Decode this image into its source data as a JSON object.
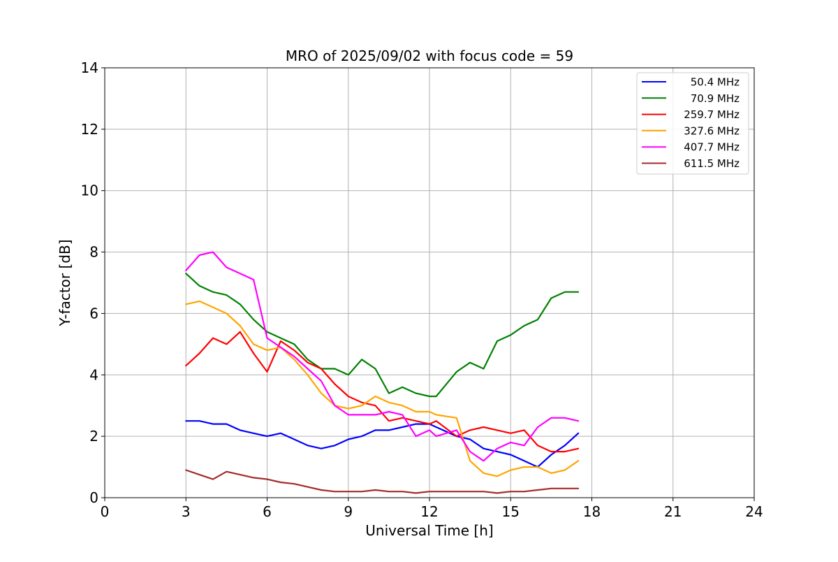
{
  "chart_data": {
    "type": "line",
    "title": "MRO of 2025/09/02 with focus code = 59",
    "xlabel": "Universal Time [h]",
    "ylabel": "Y-factor [dB]",
    "xlim": [
      0,
      24
    ],
    "ylim": [
      0,
      14
    ],
    "xticks": [
      0,
      3,
      6,
      9,
      12,
      15,
      18,
      21,
      24
    ],
    "yticks": [
      0,
      2,
      4,
      6,
      8,
      10,
      12,
      14
    ],
    "grid": true,
    "legend_position": "top-right",
    "series": [
      {
        "name": "50.4 MHz",
        "color": "#0000ff",
        "x": [
          3.0,
          3.5,
          4.0,
          4.5,
          5.0,
          5.5,
          6.0,
          6.5,
          7.0,
          7.5,
          8.0,
          8.5,
          9.0,
          9.5,
          10.0,
          10.5,
          11.0,
          11.5,
          12.0,
          12.25,
          13.0,
          13.5,
          14.0,
          14.5,
          15.0,
          15.5,
          16.0,
          16.5,
          17.0,
          17.5
        ],
        "y": [
          2.5,
          2.5,
          2.4,
          2.4,
          2.2,
          2.1,
          2.0,
          2.1,
          1.9,
          1.7,
          1.6,
          1.7,
          1.9,
          2.0,
          2.2,
          2.2,
          2.3,
          2.4,
          2.4,
          2.3,
          2.0,
          1.9,
          1.6,
          1.5,
          1.4,
          1.2,
          1.0,
          1.4,
          1.7,
          2.1
        ]
      },
      {
        "name": "70.9 MHz",
        "color": "#008000",
        "x": [
          3.0,
          3.5,
          4.0,
          4.5,
          5.0,
          5.5,
          6.0,
          6.5,
          7.0,
          7.5,
          8.0,
          8.5,
          9.0,
          9.5,
          10.0,
          10.5,
          11.0,
          11.5,
          12.0,
          12.25,
          13.0,
          13.5,
          14.0,
          14.5,
          15.0,
          15.5,
          16.0,
          16.5,
          17.0,
          17.5
        ],
        "y": [
          7.3,
          6.9,
          6.7,
          6.6,
          6.3,
          5.8,
          5.4,
          5.2,
          5.0,
          4.5,
          4.2,
          4.2,
          4.0,
          4.5,
          4.2,
          3.4,
          3.6,
          3.4,
          3.3,
          3.3,
          4.1,
          4.4,
          4.2,
          5.1,
          5.3,
          5.6,
          5.8,
          6.5,
          6.7,
          6.7
        ]
      },
      {
        "name": "259.7 MHz",
        "color": "#ff0000",
        "x": [
          3.0,
          3.5,
          4.0,
          4.5,
          5.0,
          5.5,
          6.0,
          6.5,
          7.0,
          7.5,
          8.0,
          8.5,
          9.0,
          9.5,
          10.0,
          10.5,
          11.0,
          11.5,
          12.0,
          12.25,
          13.0,
          13.5,
          14.0,
          14.5,
          15.0,
          15.5,
          16.0,
          16.5,
          17.0,
          17.5
        ],
        "y": [
          4.3,
          4.7,
          5.2,
          5.0,
          5.4,
          4.7,
          4.1,
          5.1,
          4.8,
          4.4,
          4.2,
          3.7,
          3.3,
          3.1,
          3.0,
          2.5,
          2.6,
          2.5,
          2.4,
          2.5,
          2.0,
          2.2,
          2.3,
          2.2,
          2.1,
          2.2,
          1.7,
          1.5,
          1.5,
          1.6
        ]
      },
      {
        "name": "327.6 MHz",
        "color": "#ffa500",
        "x": [
          3.0,
          3.5,
          4.0,
          4.5,
          5.0,
          5.5,
          6.0,
          6.5,
          7.0,
          7.5,
          8.0,
          8.5,
          9.0,
          9.5,
          10.0,
          10.5,
          11.0,
          11.5,
          12.0,
          12.25,
          13.0,
          13.5,
          14.0,
          14.5,
          15.0,
          15.5,
          16.0,
          16.5,
          17.0,
          17.5
        ],
        "y": [
          6.3,
          6.4,
          6.2,
          6.0,
          5.6,
          5.0,
          4.8,
          4.9,
          4.5,
          4.0,
          3.4,
          3.0,
          2.9,
          3.0,
          3.3,
          3.1,
          3.0,
          2.8,
          2.8,
          2.7,
          2.6,
          1.2,
          0.8,
          0.7,
          0.9,
          1.0,
          1.0,
          0.8,
          0.9,
          1.2
        ]
      },
      {
        "name": "407.7 MHz",
        "color": "#ff00ff",
        "x": [
          3.0,
          3.5,
          4.0,
          4.5,
          5.0,
          5.5,
          6.0,
          6.5,
          7.0,
          7.5,
          8.0,
          8.5,
          9.0,
          9.5,
          10.0,
          10.5,
          11.0,
          11.5,
          12.0,
          12.25,
          13.0,
          13.5,
          14.0,
          14.5,
          15.0,
          15.5,
          16.0,
          16.5,
          17.0,
          17.5
        ],
        "y": [
          7.4,
          7.9,
          8.0,
          7.5,
          7.3,
          7.1,
          5.2,
          4.9,
          4.6,
          4.2,
          3.8,
          3.0,
          2.7,
          2.7,
          2.7,
          2.8,
          2.7,
          2.0,
          2.2,
          2.0,
          2.2,
          1.5,
          1.2,
          1.6,
          1.8,
          1.7,
          2.3,
          2.6,
          2.6,
          2.5
        ]
      },
      {
        "name": "611.5 MHz",
        "color": "#a52a2a",
        "x": [
          3.0,
          3.5,
          4.0,
          4.5,
          5.0,
          5.5,
          6.0,
          6.5,
          7.0,
          7.5,
          8.0,
          8.5,
          9.0,
          9.5,
          10.0,
          10.5,
          11.0,
          11.5,
          12.0,
          12.25,
          13.0,
          13.5,
          14.0,
          14.5,
          15.0,
          15.5,
          16.0,
          16.5,
          17.0,
          17.5
        ],
        "y": [
          0.9,
          0.75,
          0.6,
          0.85,
          0.75,
          0.65,
          0.6,
          0.5,
          0.45,
          0.35,
          0.25,
          0.2,
          0.2,
          0.2,
          0.25,
          0.2,
          0.2,
          0.15,
          0.2,
          0.2,
          0.2,
          0.2,
          0.2,
          0.15,
          0.2,
          0.2,
          0.25,
          0.3,
          0.3,
          0.3
        ]
      }
    ]
  }
}
